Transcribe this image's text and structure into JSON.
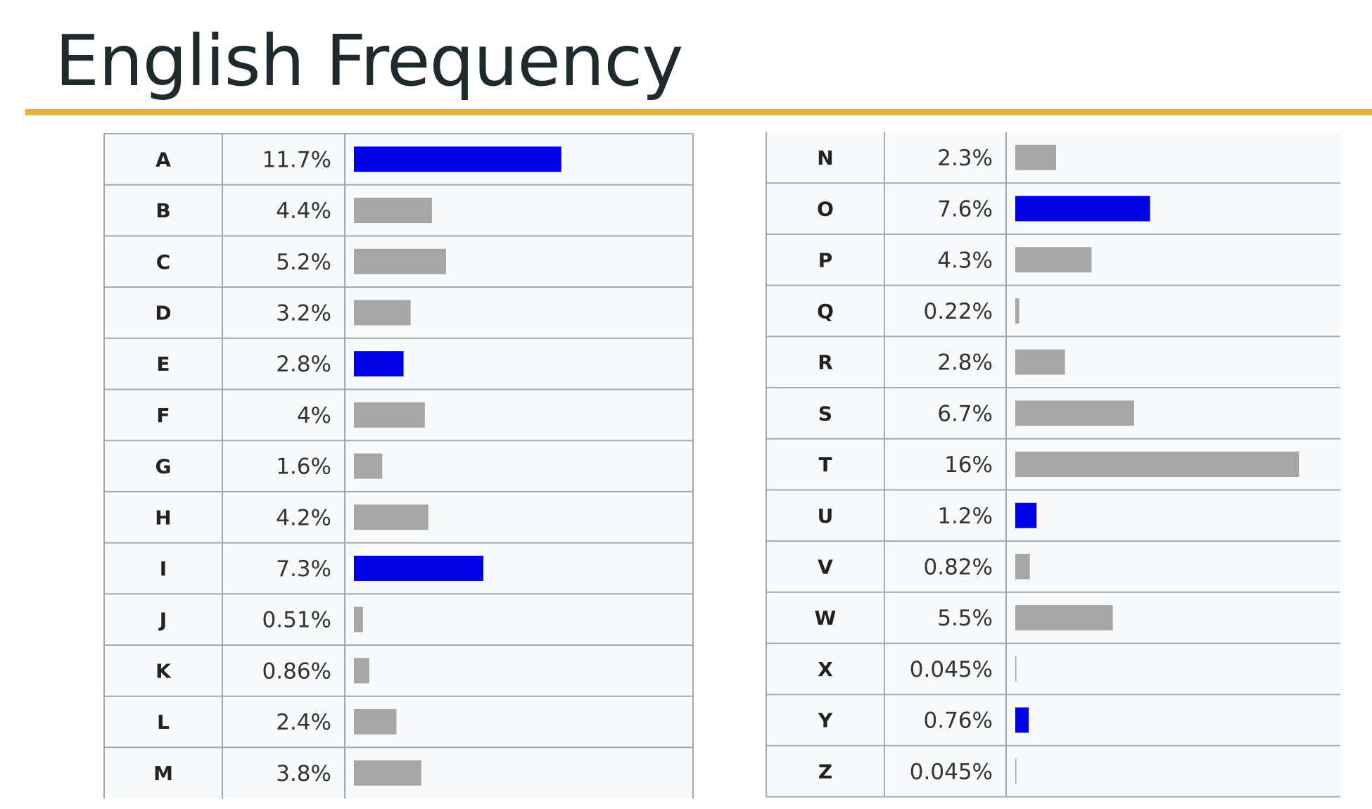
{
  "slide": {
    "title": "English Frequency"
  },
  "chart_data": {
    "type": "bar",
    "orientation": "horizontal",
    "layout": "table split into two columns (A–M, N–Z)",
    "value_unit": "%",
    "highlight_color": "#0000e6",
    "default_color": "#a6a6a6",
    "highlighted": [
      "A",
      "E",
      "I",
      "O",
      "U",
      "Y"
    ],
    "rows": [
      {
        "letter": "A",
        "label": "11.7%",
        "value": 11.7
      },
      {
        "letter": "B",
        "label": "4.4%",
        "value": 4.4
      },
      {
        "letter": "C",
        "label": "5.2%",
        "value": 5.2
      },
      {
        "letter": "D",
        "label": "3.2%",
        "value": 3.2
      },
      {
        "letter": "E",
        "label": "2.8%",
        "value": 2.8
      },
      {
        "letter": "F",
        "label": "4%",
        "value": 4
      },
      {
        "letter": "G",
        "label": "1.6%",
        "value": 1.6
      },
      {
        "letter": "H",
        "label": "4.2%",
        "value": 4.2
      },
      {
        "letter": "I",
        "label": "7.3%",
        "value": 7.3
      },
      {
        "letter": "J",
        "label": "0.51%",
        "value": 0.51
      },
      {
        "letter": "K",
        "label": "0.86%",
        "value": 0.86
      },
      {
        "letter": "L",
        "label": "2.4%",
        "value": 2.4
      },
      {
        "letter": "M",
        "label": "3.8%",
        "value": 3.8
      },
      {
        "letter": "N",
        "label": "2.3%",
        "value": 2.3
      },
      {
        "letter": "O",
        "label": "7.6%",
        "value": 7.6
      },
      {
        "letter": "P",
        "label": "4.3%",
        "value": 4.3
      },
      {
        "letter": "Q",
        "label": "0.22%",
        "value": 0.22
      },
      {
        "letter": "R",
        "label": "2.8%",
        "value": 2.8
      },
      {
        "letter": "S",
        "label": "6.7%",
        "value": 6.7
      },
      {
        "letter": "T",
        "label": "16%",
        "value": 16
      },
      {
        "letter": "U",
        "label": "1.2%",
        "value": 1.2
      },
      {
        "letter": "V",
        "label": "0.82%",
        "value": 0.82
      },
      {
        "letter": "W",
        "label": "5.5%",
        "value": 5.5
      },
      {
        "letter": "X",
        "label": "0.045%",
        "value": 0.045
      },
      {
        "letter": "Y",
        "label": "0.76%",
        "value": 0.76
      },
      {
        "letter": "Z",
        "label": "0.045%",
        "value": 0.045
      }
    ]
  }
}
